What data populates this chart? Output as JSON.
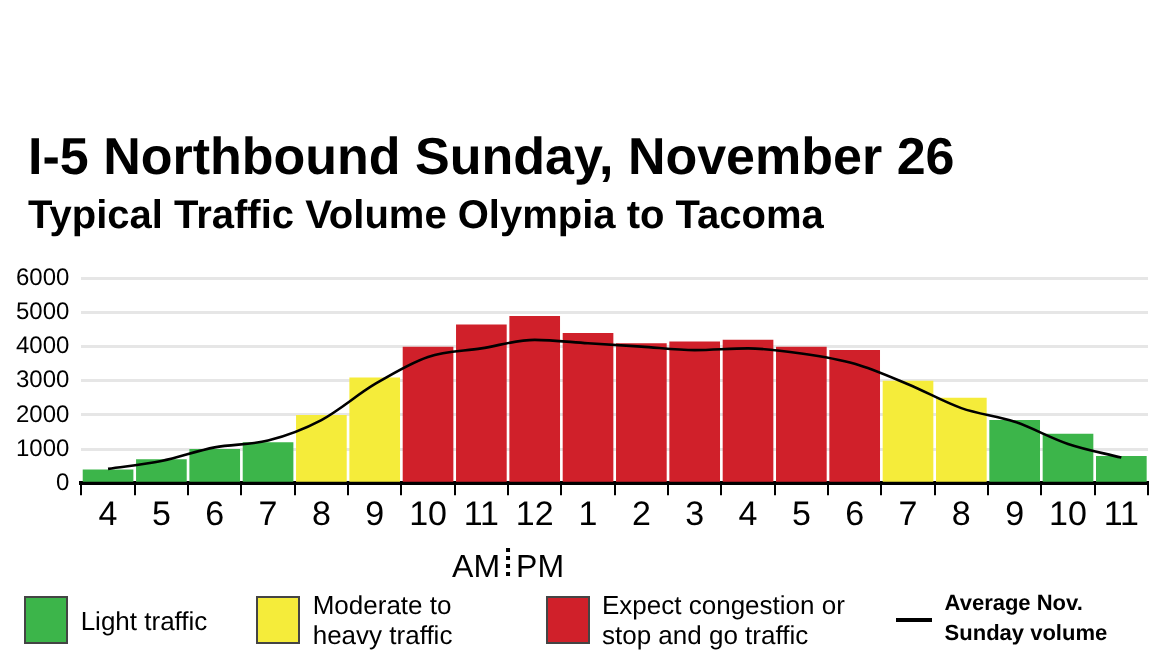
{
  "chart_data": {
    "type": "bar",
    "title": "I-5 Northbound Sunday, November 26",
    "subtitle": "Typical Traffic Volume Olympia to Tacoma",
    "categories": [
      "4",
      "5",
      "6",
      "7",
      "8",
      "9",
      "10",
      "11",
      "12",
      "1",
      "2",
      "3",
      "4",
      "5",
      "6",
      "7",
      "8",
      "9",
      "10",
      "11"
    ],
    "stacked": true,
    "ylim": [
      0,
      6000
    ],
    "yticks": [
      0,
      1000,
      2000,
      3000,
      4000,
      5000,
      6000
    ],
    "grid": "y",
    "legend": "bottom",
    "marker": "none",
    "annotations": [
      "AM",
      "PM"
    ],
    "series": [
      {
        "name": "Light traffic",
        "color": "#3cb54a",
        "values": [
          400,
          700,
          1000,
          1200,
          null,
          null,
          null,
          null,
          null,
          null,
          null,
          null,
          null,
          null,
          null,
          null,
          null,
          1850,
          1450,
          800
        ]
      },
      {
        "name": "Moderate to heavy traffic",
        "color": "#f5ec3a",
        "values": [
          null,
          null,
          null,
          null,
          2000,
          3100,
          null,
          null,
          null,
          null,
          null,
          null,
          null,
          null,
          null,
          3000,
          2500,
          null,
          null,
          null
        ]
      },
      {
        "name": "Expect congestion or stop and go traffic",
        "color": "#d0202a",
        "values": [
          null,
          null,
          null,
          null,
          null,
          null,
          4000,
          4650,
          4900,
          4400,
          4100,
          4150,
          4200,
          4000,
          3900,
          null,
          null,
          null,
          null,
          null
        ]
      },
      {
        "name": "Average Nov. Sunday volume",
        "type": "line",
        "color": "#000000",
        "values": [
          420,
          650,
          1050,
          1250,
          1850,
          2900,
          3700,
          3950,
          4200,
          4100,
          4000,
          3900,
          3950,
          3800,
          3500,
          2900,
          2200,
          1800,
          1150,
          750
        ]
      }
    ]
  }
}
